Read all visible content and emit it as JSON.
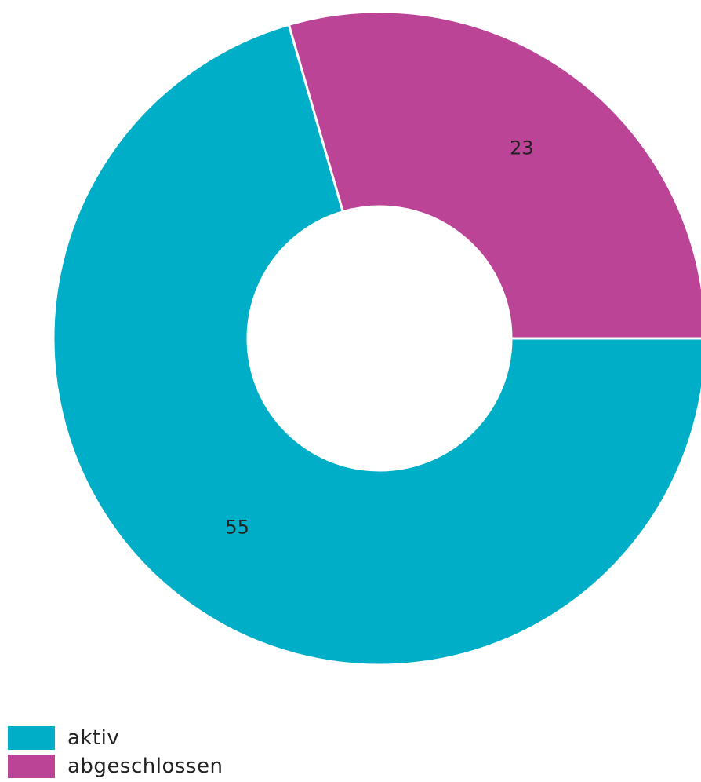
{
  "chart_data": {
    "type": "pie",
    "variant": "donut",
    "slices": [
      {
        "label": "aktiv",
        "value": 55,
        "color": "#00AEC7"
      },
      {
        "label": "abgeschlossen",
        "value": 23,
        "color": "#BC4497"
      }
    ],
    "legend_position": "bottom-left",
    "data_labels": true
  }
}
